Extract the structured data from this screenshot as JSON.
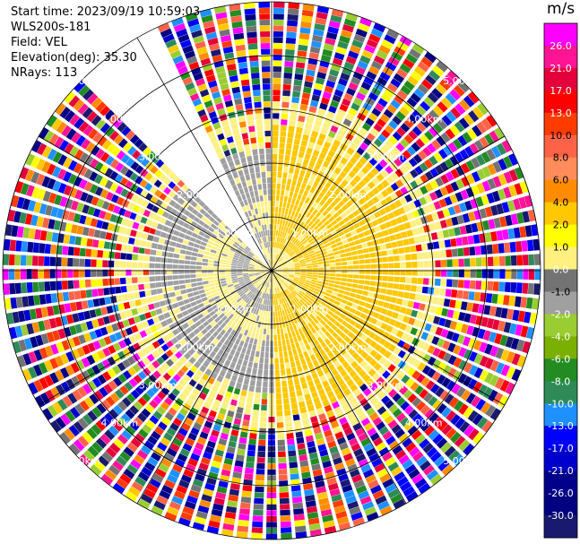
{
  "header": {
    "start_time": "Start time: 2023/09/19 10:59:03",
    "instrument": "WLS200s-181",
    "field": "Field: VEL",
    "elevation": "Elevation(deg): 35.30",
    "nrays": "NRays: 113"
  },
  "chart_data": {
    "type": "ppi",
    "title": "",
    "field": "VEL",
    "units": "m/s",
    "range_rings_km": [
      1.0,
      2.0,
      3.0,
      4.0,
      5.0
    ],
    "range_ring_labels": [
      "1.00km",
      "2.00km",
      "3.00km",
      "4.00km",
      "5.00km"
    ],
    "max_range_km": 5.0,
    "rays_count": 113,
    "elevation_deg": 35.3,
    "missing_sector_deg": [
      315,
      333
    ],
    "near_field_pattern": {
      "positive_sector_deg": [
        0,
        180
      ],
      "negative_sector_deg": [
        180,
        360
      ],
      "positive_value_ms": 2.0,
      "negative_value_ms": -2.0,
      "positive_extent_km": 2.7,
      "negative_extent_km": 2.3,
      "core_zero_radius_km": 0.4
    },
    "colorbar": {
      "label": "m/s",
      "tick_labels": [
        "26.0",
        "21.0",
        "17.0",
        "13.0",
        "10.0",
        "8.0",
        "6.0",
        "4.0",
        "2.0",
        "1.0",
        "0.0",
        "-1.0",
        "-2.0",
        "-4.0",
        "-6.0",
        "-8.0",
        "-10.0",
        "-13.0",
        "-17.0",
        "-21.0",
        "-26.0",
        "-30.0"
      ],
      "colors": [
        "#ff00ff",
        "#ff1493",
        "#e4003a",
        "#ff0000",
        "#ff3b00",
        "#ff6347",
        "#ff8c5a",
        "#ff8c00",
        "#ffc800",
        "#ffff00",
        "#fff080",
        "#737373",
        "#a0a0a0",
        "#9acd32",
        "#7ab000",
        "#228b22",
        "#2e8b57",
        "#1e90ff",
        "#0000ff",
        "#0000cd",
        "#00008b",
        "#000080",
        "#191970"
      ]
    }
  }
}
